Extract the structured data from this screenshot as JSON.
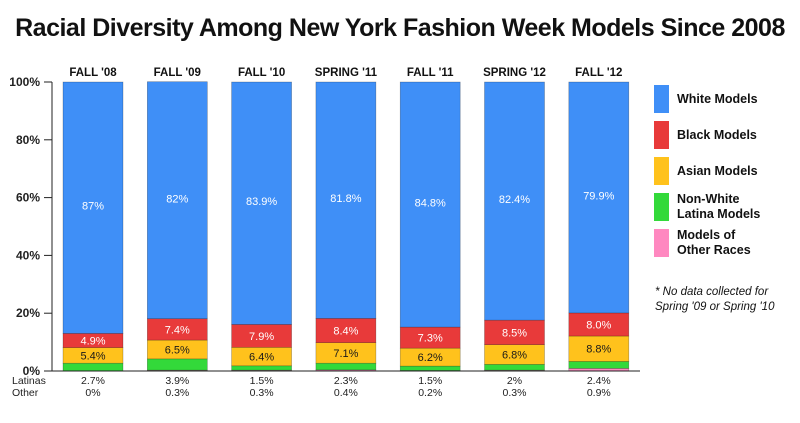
{
  "chart_data": {
    "type": "bar",
    "stacked": true,
    "title": "Racial Diversity Among New York Fashion Week Models Since 2008",
    "categories": [
      "FALL '08",
      "FALL '09",
      "FALL '10",
      "SPRING '11",
      "FALL '11",
      "SPRING '12",
      "FALL '12"
    ],
    "ylim": [
      0,
      100
    ],
    "yticks": [
      "0%",
      "20%",
      "40%",
      "60%",
      "80%",
      "100%"
    ],
    "grid": false,
    "legend_position": "right",
    "series": [
      {
        "name": "Other",
        "values": [
          0,
          0.3,
          0.3,
          0.4,
          0.2,
          0.3,
          0.9
        ],
        "labels": [
          "0%",
          "0.3%",
          "0.3%",
          "0.4%",
          "0.2%",
          "0.3%",
          "0.9%"
        ],
        "color": "#ff88c0"
      },
      {
        "name": "Latinas",
        "values": [
          2.7,
          3.9,
          1.5,
          2.3,
          1.5,
          2,
          2.4
        ],
        "labels": [
          "2.7%",
          "3.9%",
          "1.5%",
          "2.3%",
          "1.5%",
          "2%",
          "2.4%"
        ],
        "color": "#33d93a"
      },
      {
        "name": "Asian Models",
        "values": [
          5.4,
          6.5,
          6.4,
          7.1,
          6.2,
          6.8,
          8.8
        ],
        "labels": [
          "5.4%",
          "6.5%",
          "6.4%",
          "7.1%",
          "6.2%",
          "6.8%",
          "8.8%"
        ],
        "color": "#ffc21c"
      },
      {
        "name": "Black Models",
        "values": [
          4.9,
          7.4,
          7.9,
          8.4,
          7.3,
          8.5,
          8.0
        ],
        "labels": [
          "4.9%",
          "7.4%",
          "7.9%",
          "8.4%",
          "7.3%",
          "8.5%",
          "8.0%"
        ],
        "color": "#e83a3a"
      },
      {
        "name": "White Models",
        "values": [
          87,
          82,
          83.9,
          81.8,
          84.8,
          82.4,
          79.9
        ],
        "labels": [
          "87%",
          "82%",
          "83.9%",
          "81.8%",
          "84.8%",
          "82.4%",
          "79.9%"
        ],
        "color": "#3f8ff7"
      }
    ],
    "bottom_rows": [
      {
        "label": "Latinas",
        "values": [
          "2.7%",
          "3.9%",
          "1.5%",
          "2.3%",
          "1.5%",
          "2%",
          "2.4%"
        ]
      },
      {
        "label": "Other",
        "values": [
          "0%",
          "0.3%",
          "0.3%",
          "0.4%",
          "0.2%",
          "0.3%",
          "0.9%"
        ]
      }
    ],
    "legend": [
      {
        "label": "White Models",
        "color": "#3f8ff7"
      },
      {
        "label": "Black Models",
        "color": "#e83a3a"
      },
      {
        "label": "Asian Models",
        "color": "#ffc21c"
      },
      {
        "label": "Non-White\nLatina Models",
        "color": "#33d93a"
      },
      {
        "label": "Models of\nOther Races",
        "color": "#ff88c0"
      }
    ],
    "note": "* No data collected for Spring '09 or Spring '10"
  }
}
